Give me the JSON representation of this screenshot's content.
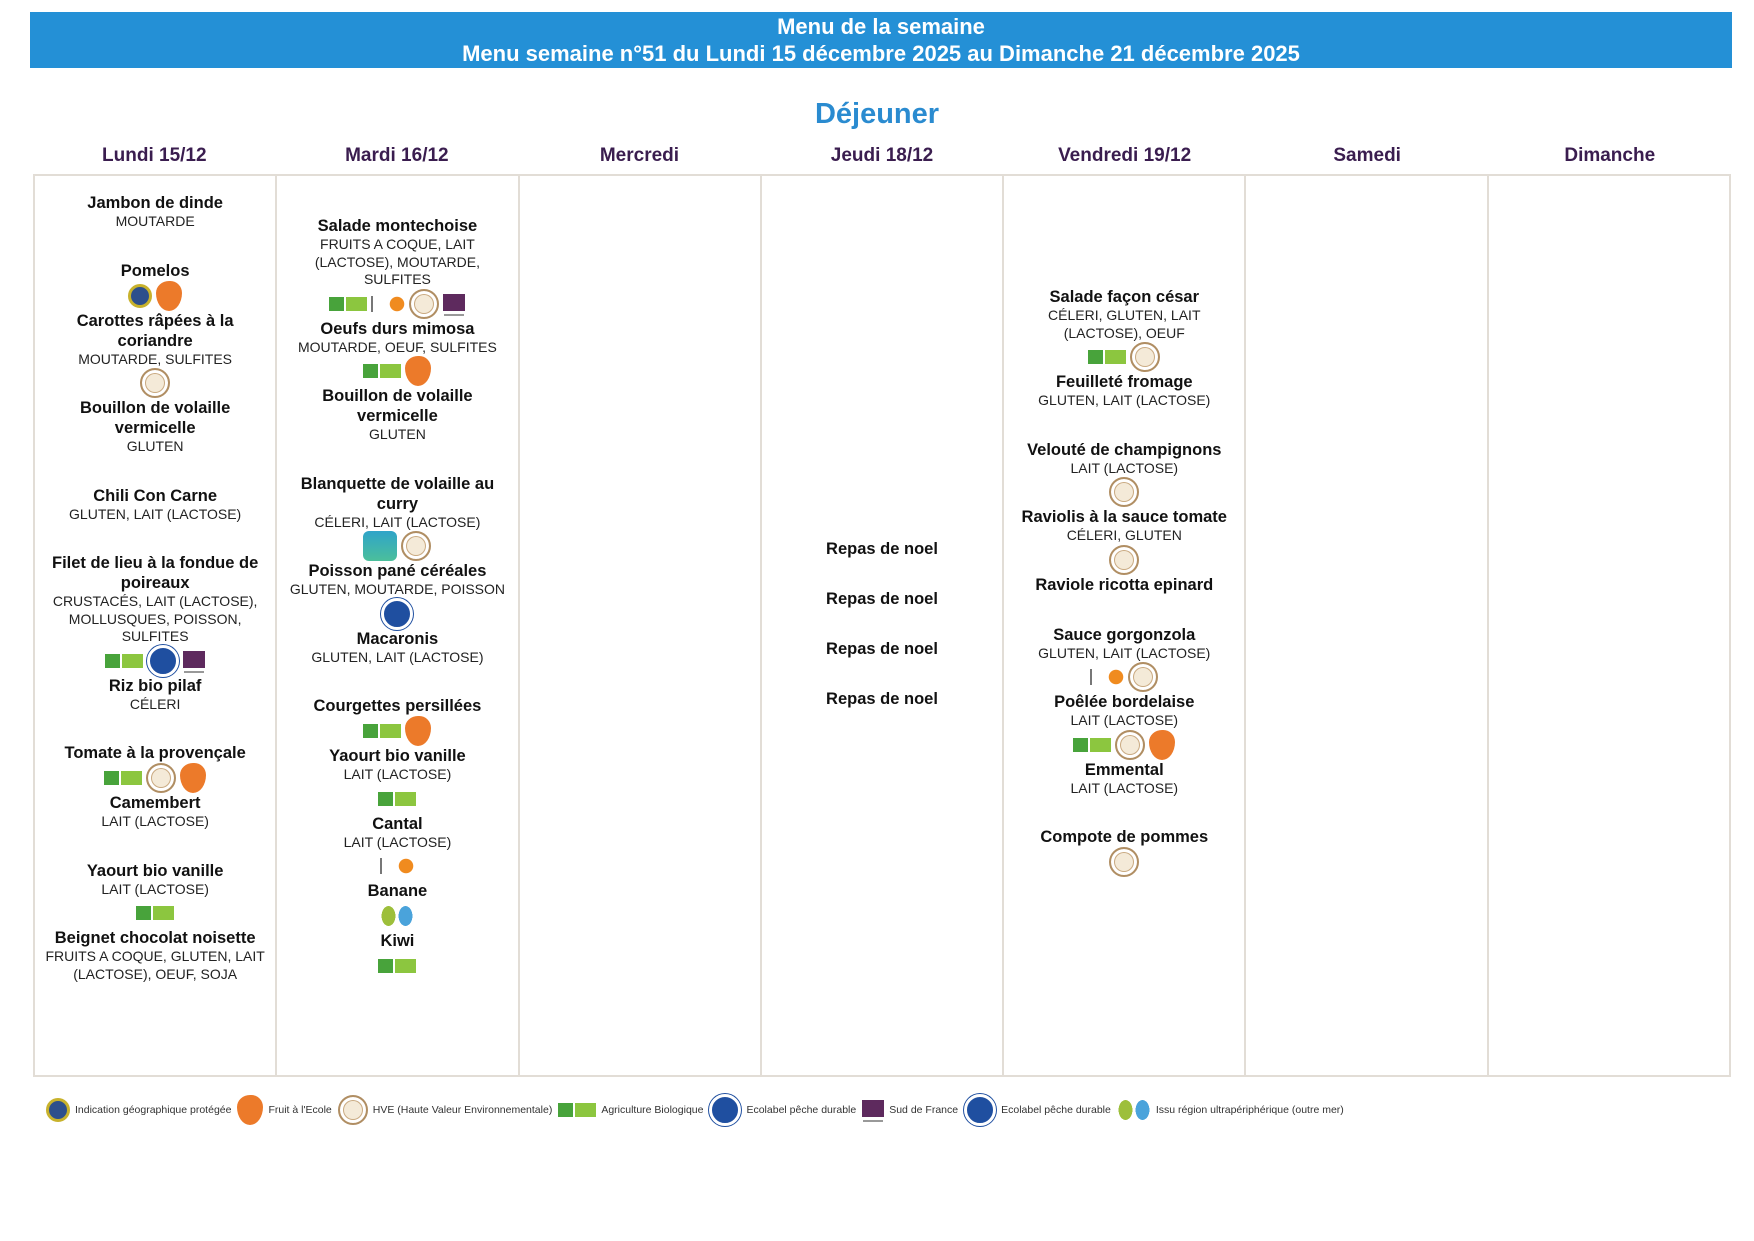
{
  "header": {
    "title": "Menu de la semaine",
    "subtitle": "Menu semaine n°51 du Lundi 15 décembre 2025 au Dimanche 21 décembre 2025"
  },
  "meal": "Déjeuner",
  "colors": {
    "banner": "#2490d6",
    "meal_title": "#2a8bd0",
    "day_header": "#3a1d4f"
  },
  "days": [
    {
      "label": "Lundi 15/12",
      "items": [
        {
          "name": "Jambon de dinde",
          "allergens": "MOUTARDE",
          "icons": []
        },
        {
          "name": "Pomelos",
          "allergens": "",
          "icons": [
            "igp",
            "fruit"
          ]
        },
        {
          "name": "Carottes râpées à la coriandre",
          "allergens": "MOUTARDE, SULFITES",
          "icons": [
            "hve"
          ]
        },
        {
          "name": "Bouillon de volaille vermicelle",
          "allergens": "GLUTEN",
          "icons": []
        },
        {
          "name": "Chili Con Carne",
          "allergens": "GLUTEN, LAIT (LACTOSE)",
          "icons": []
        },
        {
          "name": "Filet de lieu à la fondue de poireaux",
          "allergens": "CRUSTACÉS, LAIT (LACTOSE), MOLLUSQUES, POISSON, SULFITES",
          "icons": [
            "ab",
            "eco",
            "sud"
          ]
        },
        {
          "name": "Riz bio pilaf",
          "allergens": "CÉLERI",
          "icons": []
        },
        {
          "name": "Tomate à la provençale",
          "allergens": "",
          "icons": [
            "ab",
            "hve",
            "fruit"
          ]
        },
        {
          "name": "Camembert",
          "allergens": "LAIT (LACTOSE)",
          "icons": []
        },
        {
          "name": "Yaourt bio vanille",
          "allergens": "LAIT (LACTOSE)",
          "icons": [
            "ab"
          ]
        },
        {
          "name": "Beignet chocolat noisette",
          "allergens": "FRUITS A COQUE, GLUTEN, LAIT (LACTOSE), OEUF, SOJA",
          "icons": []
        }
      ]
    },
    {
      "label": "Mardi 16/12",
      "items": [
        {
          "name": "Salade montechoise",
          "allergens": "FRUITS A COQUE, LAIT (LACTOSE), MOUTARDE, SULFITES",
          "icons": [
            "ab",
            "aoc",
            "hve",
            "sud"
          ]
        },
        {
          "name": "Oeufs durs mimosa",
          "allergens": "MOUTARDE, OEUF, SULFITES",
          "icons": [
            "ab",
            "fruit"
          ]
        },
        {
          "name": "Bouillon de volaille vermicelle",
          "allergens": "GLUTEN",
          "icons": []
        },
        {
          "name": "Blanquette de volaille au curry",
          "allergens": "CÉLERI, LAIT (LACTOSE)",
          "icons": [
            "bbc",
            "hve"
          ]
        },
        {
          "name": "Poisson pané céréales",
          "allergens": "GLUTEN, MOUTARDE, POISSON",
          "icons": [
            "eco"
          ]
        },
        {
          "name": "Macaronis",
          "allergens": "GLUTEN, LAIT (LACTOSE)",
          "icons": []
        },
        {
          "name": "Courgettes persillées",
          "allergens": "",
          "icons": [
            "ab",
            "fruit"
          ]
        },
        {
          "name": "Yaourt bio vanille",
          "allergens": "LAIT (LACTOSE)",
          "icons": [
            "ab"
          ]
        },
        {
          "name": "Cantal",
          "allergens": "LAIT (LACTOSE)",
          "icons": [
            "aoc"
          ]
        },
        {
          "name": "Banane",
          "allergens": "",
          "icons": [
            "rup"
          ]
        },
        {
          "name": "Kiwi",
          "allergens": "",
          "icons": [
            "ab"
          ]
        }
      ]
    },
    {
      "label": "Mercredi",
      "items": []
    },
    {
      "label": "Jeudi 18/12",
      "items": [
        {
          "name": "Repas de noel",
          "allergens": "",
          "icons": []
        },
        {
          "name": "Repas de noel",
          "allergens": "",
          "icons": []
        },
        {
          "name": "Repas de noel",
          "allergens": "",
          "icons": []
        },
        {
          "name": "Repas de noel",
          "allergens": "",
          "icons": []
        }
      ]
    },
    {
      "label": "Vendredi 19/12",
      "items": [
        {
          "name": "Salade façon césar",
          "allergens": "CÉLERI, GLUTEN, LAIT (LACTOSE), OEUF",
          "icons": [
            "ab",
            "hve"
          ]
        },
        {
          "name": "Feuilleté fromage",
          "allergens": "GLUTEN, LAIT (LACTOSE)",
          "icons": []
        },
        {
          "name": "Velouté de champignons",
          "allergens": "LAIT (LACTOSE)",
          "icons": [
            "hve"
          ]
        },
        {
          "name": "Raviolis à la sauce tomate",
          "allergens": "CÉLERI, GLUTEN",
          "icons": [
            "hve"
          ]
        },
        {
          "name": "Raviole ricotta epinard",
          "allergens": "",
          "icons": []
        },
        {
          "name": "Sauce gorgonzola",
          "allergens": "GLUTEN, LAIT (LACTOSE)",
          "icons": [
            "aoc",
            "hve"
          ]
        },
        {
          "name": "Poêlée bordelaise",
          "allergens": "LAIT (LACTOSE)",
          "icons": [
            "ab",
            "hve",
            "fruit"
          ]
        },
        {
          "name": "Emmental",
          "allergens": "LAIT (LACTOSE)",
          "icons": []
        },
        {
          "name": "Compote de pommes",
          "allergens": "",
          "icons": [
            "hve"
          ]
        }
      ]
    },
    {
      "label": "Samedi",
      "items": []
    },
    {
      "label": "Dimanche",
      "items": []
    }
  ],
  "legend": [
    {
      "icon": "igp",
      "label": "Indication géographique protégée"
    },
    {
      "icon": "fruit",
      "label": "Fruit à l'Ecole"
    },
    {
      "icon": "hve",
      "label": "HVE (Haute Valeur Environnementale)"
    },
    {
      "icon": "ab",
      "label": "Agriculture Biologique"
    },
    {
      "icon": "eco",
      "label": "Ecolabel pêche durable"
    },
    {
      "icon": "sud",
      "label": "Sud de France"
    },
    {
      "icon": "eco",
      "label": "Ecolabel pêche durable"
    },
    {
      "icon": "rup",
      "label": "Issu région ultrapériphérique (outre mer)"
    }
  ]
}
